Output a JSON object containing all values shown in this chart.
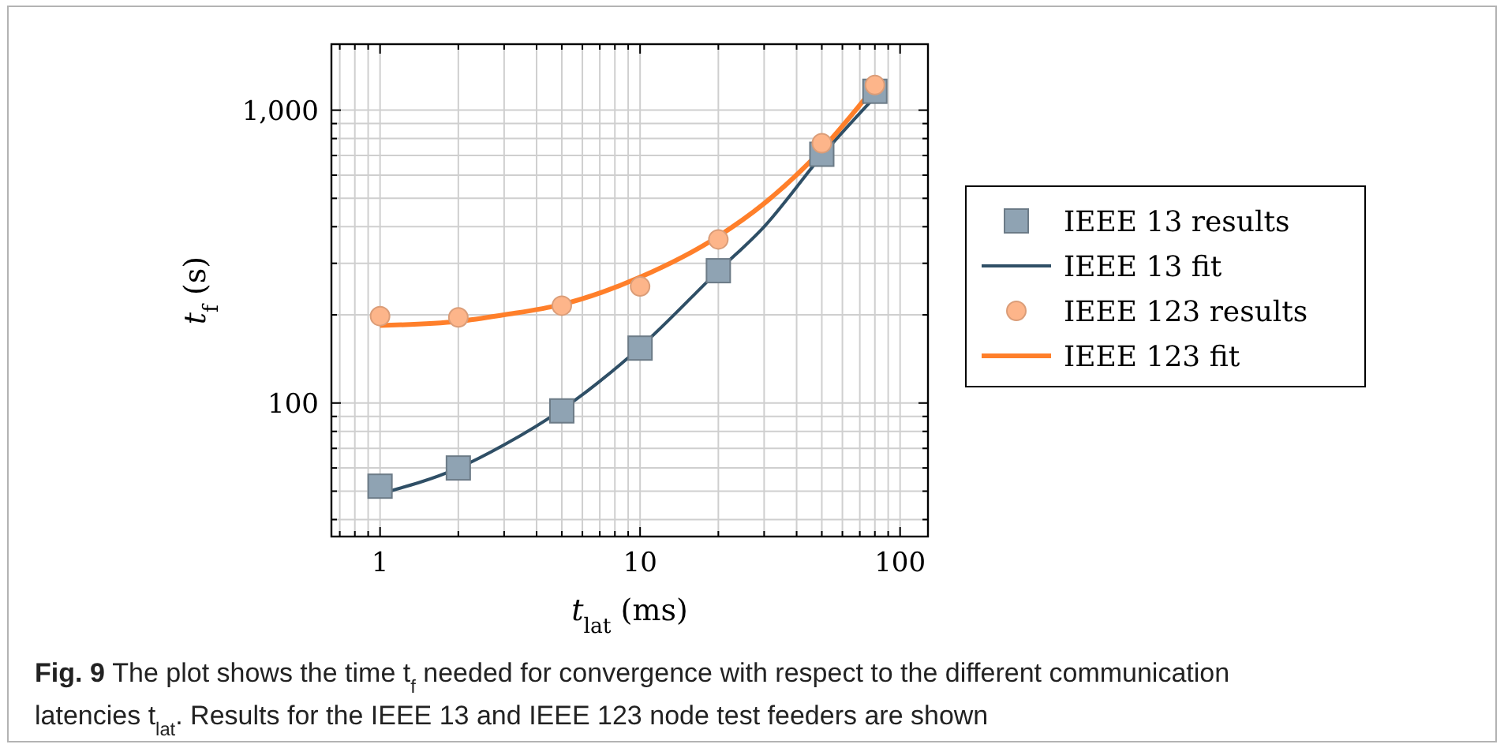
{
  "chart_data": {
    "type": "scatter",
    "xlabel": "t$_{lat}$ (ms)",
    "ylabel": "t$_{f}$ (s)",
    "log": "xy",
    "grid": true,
    "legend": "right",
    "xlim": [
      0.65,
      128
    ],
    "ylim": [
      35,
      1680
    ],
    "xticks": [
      {
        "value": 0.7,
        "label": null
      },
      {
        "value": 0.8,
        "label": null
      },
      {
        "value": 0.9,
        "label": null
      },
      1,
      {
        "value": 2,
        "label": null
      },
      {
        "value": 3,
        "label": null
      },
      {
        "value": 4,
        "label": null
      },
      {
        "value": 5,
        "label": null
      },
      {
        "value": 6,
        "label": null
      },
      {
        "value": 7,
        "label": null
      },
      {
        "value": 8,
        "label": null
      },
      {
        "value": 9,
        "label": null
      },
      10,
      {
        "value": 20,
        "label": null
      },
      {
        "value": 30,
        "label": null
      },
      {
        "value": 40,
        "label": null
      },
      {
        "value": 50,
        "label": null
      },
      {
        "value": 60,
        "label": null
      },
      {
        "value": 70,
        "label": null
      },
      {
        "value": 80,
        "label": null
      },
      {
        "value": 90,
        "label": null
      },
      100
    ],
    "yticks": [
      {
        "value": 40,
        "label": null
      },
      {
        "value": 50,
        "label": null
      },
      {
        "value": 60,
        "label": null
      },
      {
        "value": 70,
        "label": null
      },
      {
        "value": 80,
        "label": null
      },
      {
        "value": 90,
        "label": null
      },
      100,
      {
        "value": 200,
        "label": null
      },
      {
        "value": 300,
        "label": null
      },
      {
        "value": 400,
        "label": null
      },
      {
        "value": 500,
        "label": null
      },
      {
        "value": 600,
        "label": null
      },
      {
        "value": 700,
        "label": null
      },
      {
        "value": 800,
        "label": null
      },
      {
        "value": 900,
        "label": null
      },
      {
        "value": 1000,
        "label": "1,000"
      }
    ],
    "series": [
      {
        "name": "IEEE 13 results",
        "marker": "square",
        "color": "#8fa3b3",
        "x": [
          1,
          2,
          5,
          10,
          20,
          50,
          80
        ],
        "values": [
          52,
          60,
          94,
          154,
          283,
          707,
          1160
        ]
      },
      {
        "name": "IEEE 13 fit",
        "type": "line",
        "marker": "none",
        "color": "#2f4f66",
        "x": [
          1,
          2,
          3,
          5,
          10,
          20,
          30,
          50,
          80
        ],
        "values": [
          49,
          60,
          72,
          95,
          155,
          283,
          400,
          700,
          1110
        ]
      },
      {
        "name": "IEEE 123 results",
        "marker": "circle",
        "color": "#fdb58a",
        "x": [
          1,
          2,
          5,
          10,
          20,
          50,
          80
        ],
        "values": [
          198,
          196,
          215,
          250,
          362,
          771,
          1218
        ]
      },
      {
        "name": "IEEE 123 fit",
        "type": "line",
        "marker": "none",
        "color": "#ff7f2a",
        "x": [
          1,
          2,
          3,
          5,
          10,
          20,
          30,
          50,
          80
        ],
        "values": [
          184,
          190,
          200,
          217,
          269,
          371,
          480,
          734,
          1204
        ]
      }
    ],
    "annotations": [
      "Fig. 9",
      "The plot shows the time t$_{f}$ needed for convergence with respect to the different communication latencies t$_{lat}$. Results for the IEEE 13 and IEEE 123 node test feeders are shown"
    ]
  }
}
